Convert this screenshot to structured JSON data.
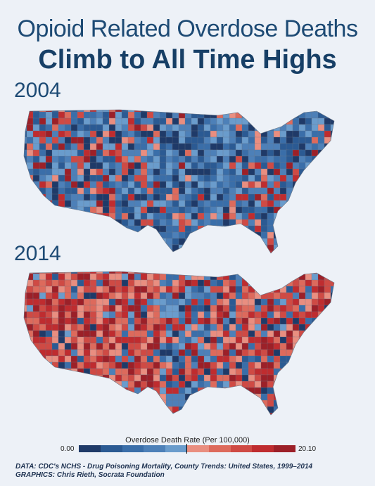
{
  "title_line1": "Opioid Related Overdose Deaths",
  "title_line2": "Climb to All Time Highs",
  "maps": [
    {
      "year": "2004",
      "dominant": "blue"
    },
    {
      "year": "2014",
      "dominant": "red"
    }
  ],
  "legend": {
    "title": "Overdose Death Rate (Per 100,000)",
    "min": "0.00",
    "max": "20.10",
    "colors": [
      "#1f3a68",
      "#2b5a93",
      "#3a6ea9",
      "#4d80b8",
      "#6a9ccc",
      "#e98e80",
      "#dd6a5c",
      "#cf4a44",
      "#bf2c2f",
      "#9c2028"
    ]
  },
  "credits": {
    "data": "DATA: CDC's NCHS - Drug Poisoning Mortality, County Trends: United States, 1999–2014",
    "graphics": "GRAPHICS: Chris Rieth, Socrata Foundation"
  }
}
